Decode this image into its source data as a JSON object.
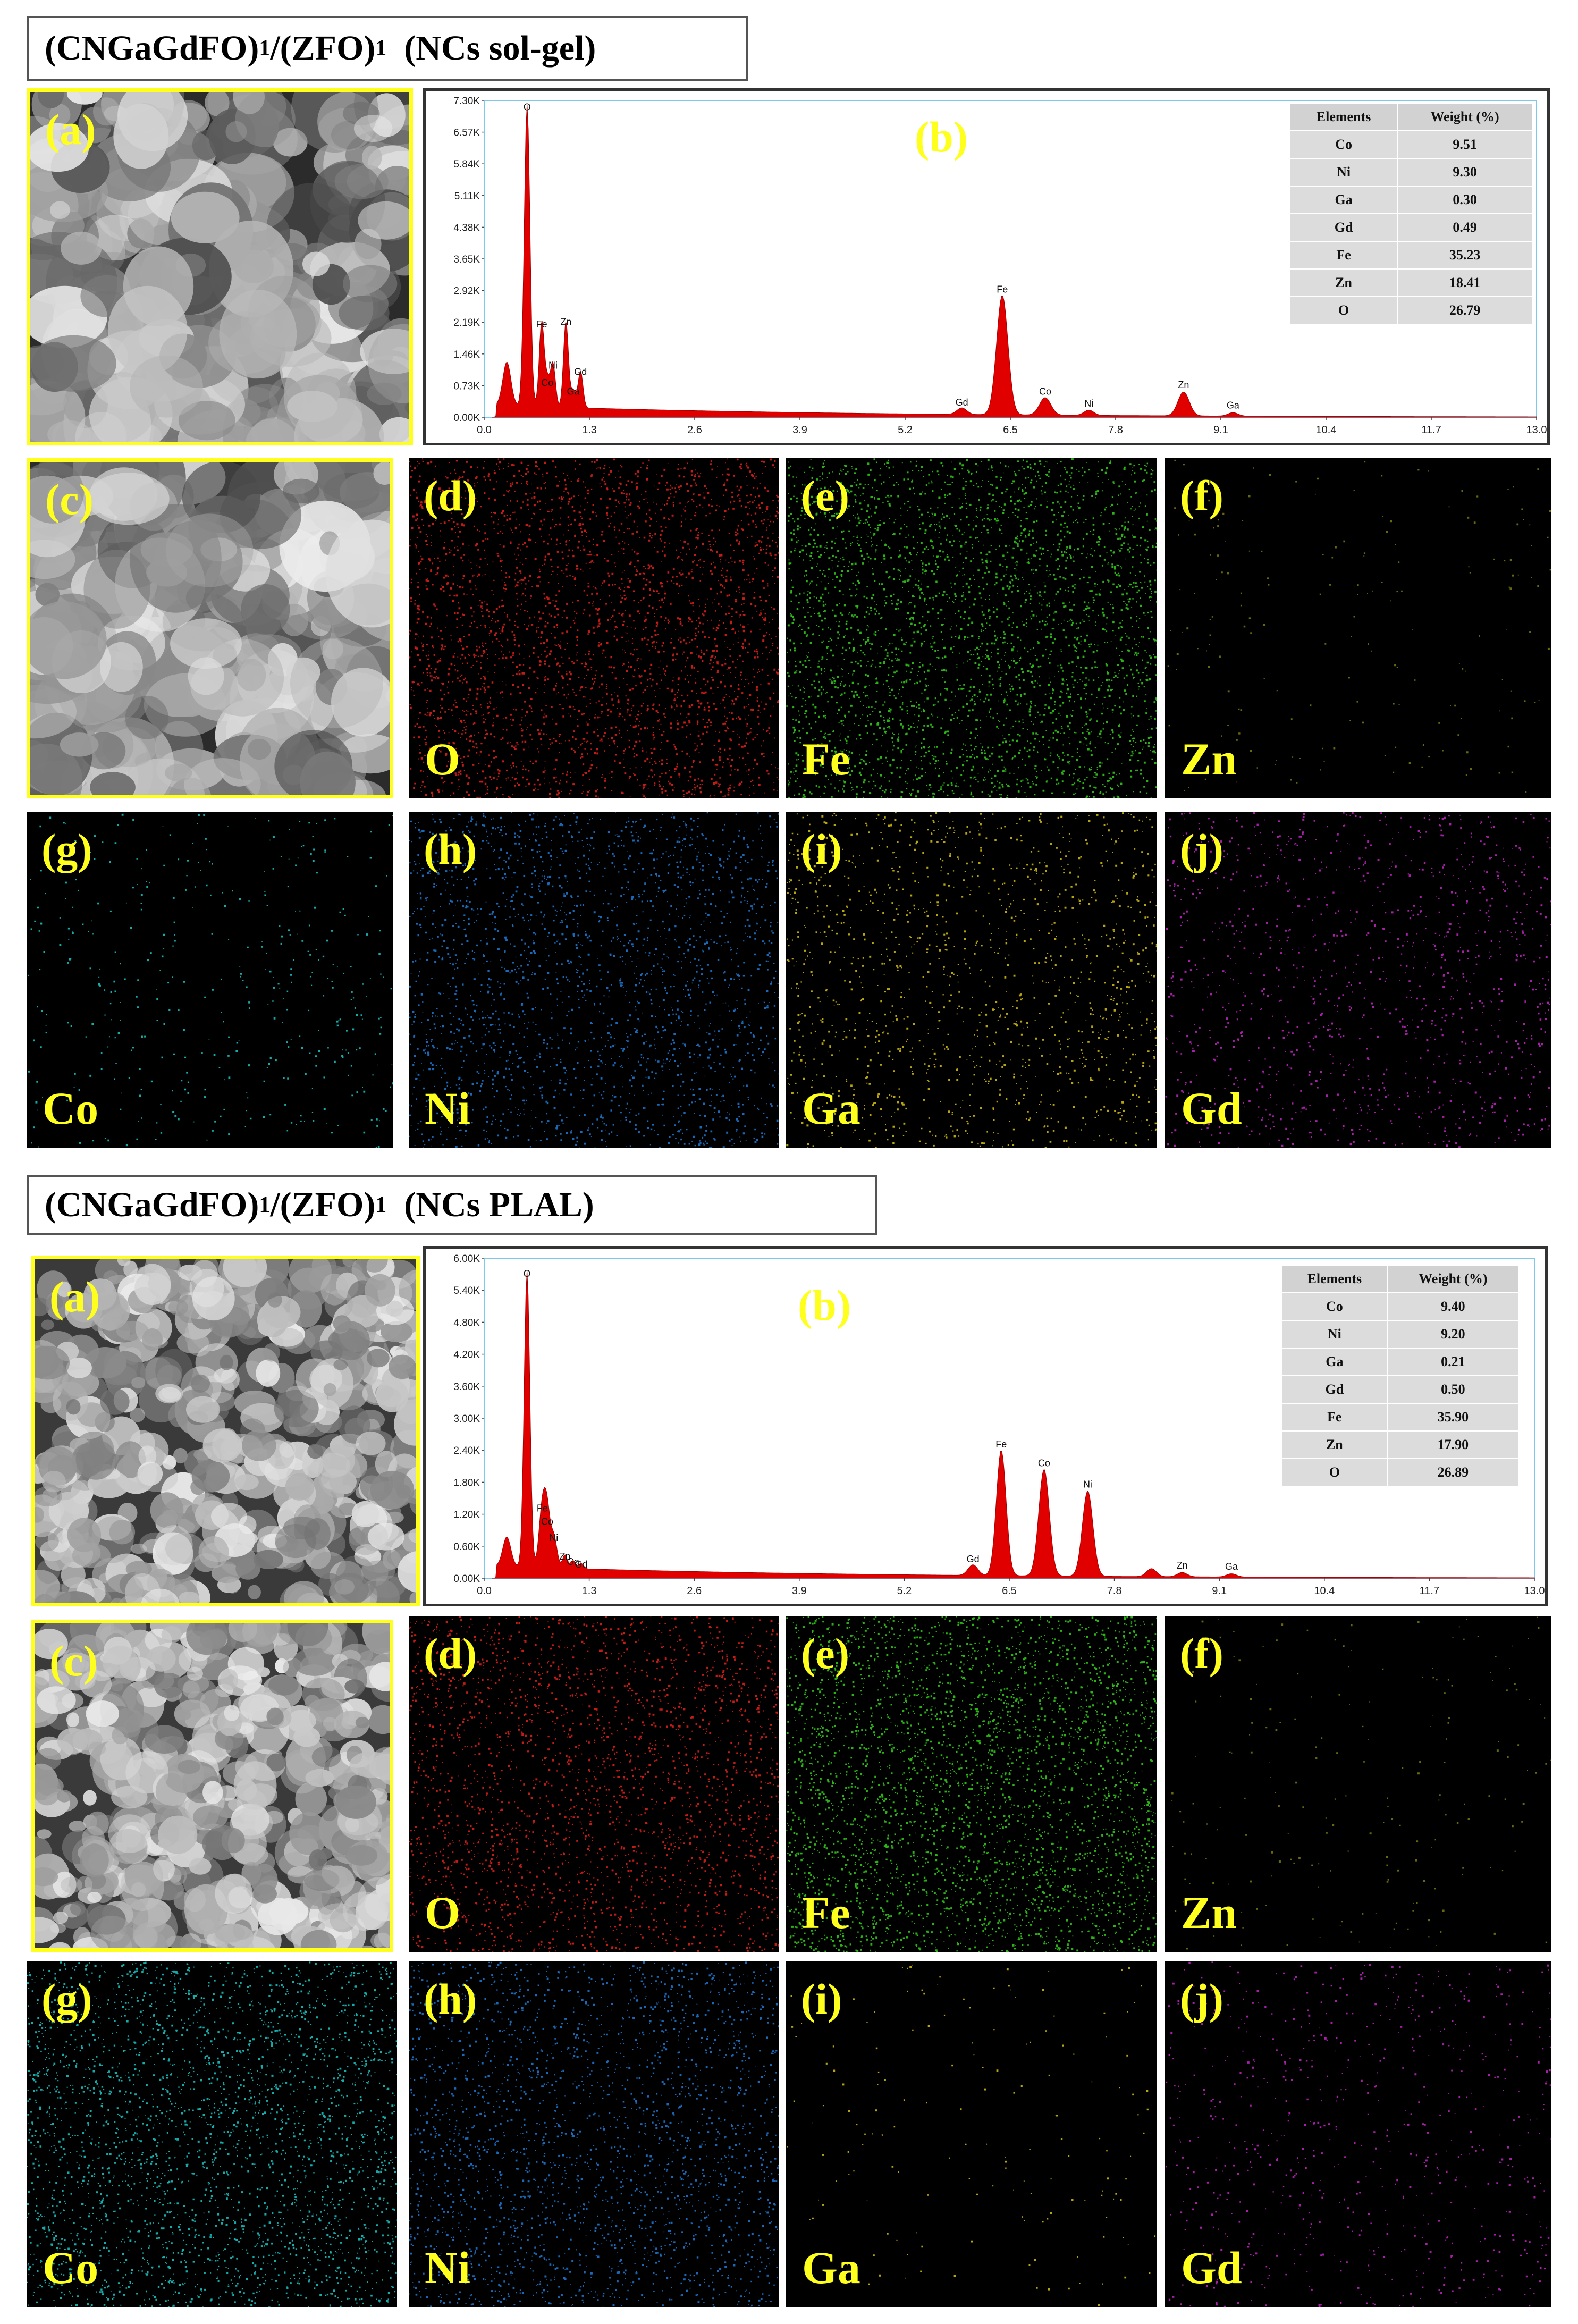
{
  "colors": {
    "label_yellow": "#ffff1e",
    "O": "#e8201b",
    "Fe": "#33d21a",
    "Zn": "#7a7a10",
    "Co": "#18c9c9",
    "Ni": "#1f7ad8",
    "Ga": "#d8c20f",
    "Gd": "#c524c5",
    "spectrum_fill": "#e10000"
  },
  "sections": [
    {
      "title": {
        "main": "(CNGaGdFO)",
        "sub1": "1",
        "mid": "/(ZFO)",
        "sub2": "1",
        "tail": "  (NCs sol-gel)"
      },
      "panel_a": "(a)",
      "panel_b": "(b)",
      "panel_c": "(c)",
      "table": {
        "headers": [
          "Elements",
          "Weight (%)"
        ],
        "rows": [
          [
            "Co",
            "9.51"
          ],
          [
            "Ni",
            "9.30"
          ],
          [
            "Ga",
            "0.30"
          ],
          [
            "Gd",
            "0.49"
          ],
          [
            "Fe",
            "35.23"
          ],
          [
            "Zn",
            "18.41"
          ],
          [
            "O",
            "26.79"
          ]
        ]
      },
      "maps": [
        {
          "letter": "(d)",
          "element": "O",
          "icon": "o-map",
          "density": 3200
        },
        {
          "letter": "(e)",
          "element": "Fe",
          "icon": "fe-map",
          "density": 3400
        },
        {
          "letter": "(f)",
          "element": "Zn",
          "icon": "zn-map",
          "density": 180
        },
        {
          "letter": "(g)",
          "element": "Co",
          "icon": "co-map",
          "density": 420
        },
        {
          "letter": "(h)",
          "element": "Ni",
          "icon": "ni-map",
          "density": 2200
        },
        {
          "letter": "(i)",
          "element": "Ga",
          "icon": "ga-map",
          "density": 1400
        },
        {
          "letter": "(j)",
          "element": "Gd",
          "icon": "gd-map",
          "density": 1200
        }
      ],
      "chart_data": {
        "type": "area",
        "title": "",
        "xlabel": "",
        "ylabel": "",
        "x_ticks": [
          "0.0",
          "1.3",
          "2.6",
          "3.9",
          "5.2",
          "6.5",
          "7.8",
          "9.1",
          "10.4",
          "11.7",
          "13.0"
        ],
        "y_ticks": [
          "0.00K",
          "0.73K",
          "1.46K",
          "2.19K",
          "2.92K",
          "3.65K",
          "4.38K",
          "5.11K",
          "5.84K",
          "6.57K",
          "7.30K"
        ],
        "xlim": [
          0,
          13.0
        ],
        "ylim": [
          0,
          7.3
        ],
        "peaks": [
          {
            "label": "",
            "x": 0.28,
            "y": 1.0,
            "w": 0.05
          },
          {
            "label": "O",
            "x": 0.53,
            "y": 6.95,
            "w": 0.035
          },
          {
            "label": "Fe",
            "x": 0.71,
            "y": 1.95,
            "w": 0.03
          },
          {
            "label": "Ni",
            "x": 0.85,
            "y": 1.0,
            "w": 0.03
          },
          {
            "label": "Co",
            "x": 0.78,
            "y": 0.6,
            "w": 0.03
          },
          {
            "label": "Zn",
            "x": 1.01,
            "y": 2.0,
            "w": 0.03
          },
          {
            "label": "Gd",
            "x": 1.19,
            "y": 0.85,
            "w": 0.03
          },
          {
            "label": "Ga",
            "x": 1.1,
            "y": 0.4,
            "w": 0.03
          },
          {
            "label": "Gd",
            "x": 5.9,
            "y": 0.15,
            "w": 0.06
          },
          {
            "label": "Fe",
            "x": 6.4,
            "y": 2.75,
            "w": 0.07
          },
          {
            "label": "Co",
            "x": 6.93,
            "y": 0.4,
            "w": 0.07
          },
          {
            "label": "Ni",
            "x": 7.47,
            "y": 0.12,
            "w": 0.06
          },
          {
            "label": "Zn",
            "x": 8.64,
            "y": 0.55,
            "w": 0.07
          },
          {
            "label": "Ga",
            "x": 9.25,
            "y": 0.08,
            "w": 0.06
          }
        ]
      }
    },
    {
      "title": {
        "main": "(CNGaGdFO)",
        "sub1": "1",
        "mid": "/(ZFO)",
        "sub2": "1",
        "tail": "  (NCs PLAL)"
      },
      "panel_a": "(a)",
      "panel_b": "(b)",
      "panel_c": "(c)",
      "table": {
        "headers": [
          "Elements",
          "Weight (%)"
        ],
        "rows": [
          [
            "Co",
            "9.40"
          ],
          [
            "Ni",
            "9.20"
          ],
          [
            "Ga",
            "0.21"
          ],
          [
            "Gd",
            "0.50"
          ],
          [
            "Fe",
            "35.90"
          ],
          [
            "Zn",
            "17.90"
          ],
          [
            "O",
            "26.89"
          ]
        ]
      },
      "maps": [
        {
          "letter": "(d)",
          "element": "O",
          "icon": "o-map",
          "density": 2600
        },
        {
          "letter": "(e)",
          "element": "Fe",
          "icon": "fe-map",
          "density": 3600
        },
        {
          "letter": "(f)",
          "element": "Zn",
          "icon": "zn-map",
          "density": 200
        },
        {
          "letter": "(g)",
          "element": "Co",
          "icon": "co-map",
          "density": 3000
        },
        {
          "letter": "(h)",
          "element": "Ni",
          "icon": "ni-map",
          "density": 2400
        },
        {
          "letter": "(i)",
          "element": "Ga",
          "icon": "ga-map",
          "density": 160
        },
        {
          "letter": "(j)",
          "element": "Gd",
          "icon": "gd-map",
          "density": 700
        }
      ],
      "chart_data": {
        "type": "area",
        "title": "",
        "xlabel": "",
        "ylabel": "",
        "x_ticks": [
          "0.0",
          "1.3",
          "2.6",
          "3.9",
          "5.2",
          "6.5",
          "7.8",
          "9.1",
          "10.4",
          "11.7",
          "13.0"
        ],
        "y_ticks": [
          "0.00K",
          "0.60K",
          "1.20K",
          "1.80K",
          "2.40K",
          "3.00K",
          "3.60K",
          "4.20K",
          "4.80K",
          "5.40K",
          "6.00K"
        ],
        "xlim": [
          0,
          13.0
        ],
        "ylim": [
          0,
          6.0
        ],
        "peaks": [
          {
            "label": "",
            "x": 0.28,
            "y": 0.55,
            "w": 0.05
          },
          {
            "label": "O",
            "x": 0.53,
            "y": 5.55,
            "w": 0.035
          },
          {
            "label": "Fe",
            "x": 0.72,
            "y": 1.15,
            "w": 0.04
          },
          {
            "label": "Ni",
            "x": 0.86,
            "y": 0.6,
            "w": 0.04
          },
          {
            "label": "Co",
            "x": 0.78,
            "y": 0.9,
            "w": 0.035
          },
          {
            "label": "Zn",
            "x": 1.0,
            "y": 0.25,
            "w": 0.03
          },
          {
            "label": "Ga",
            "x": 1.1,
            "y": 0.15,
            "w": 0.03
          },
          {
            "label": "Gd",
            "x": 1.2,
            "y": 0.1,
            "w": 0.03
          },
          {
            "label": "Gd",
            "x": 6.05,
            "y": 0.2,
            "w": 0.06
          },
          {
            "label": "Fe",
            "x": 6.4,
            "y": 2.35,
            "w": 0.06
          },
          {
            "label": "Co",
            "x": 6.93,
            "y": 2.0,
            "w": 0.065
          },
          {
            "label": "Ni",
            "x": 7.47,
            "y": 1.6,
            "w": 0.065
          },
          {
            "label": "",
            "x": 8.26,
            "y": 0.15,
            "w": 0.06
          },
          {
            "label": "Zn",
            "x": 8.64,
            "y": 0.08,
            "w": 0.06
          },
          {
            "label": "Ga",
            "x": 9.25,
            "y": 0.06,
            "w": 0.06
          }
        ]
      }
    }
  ]
}
